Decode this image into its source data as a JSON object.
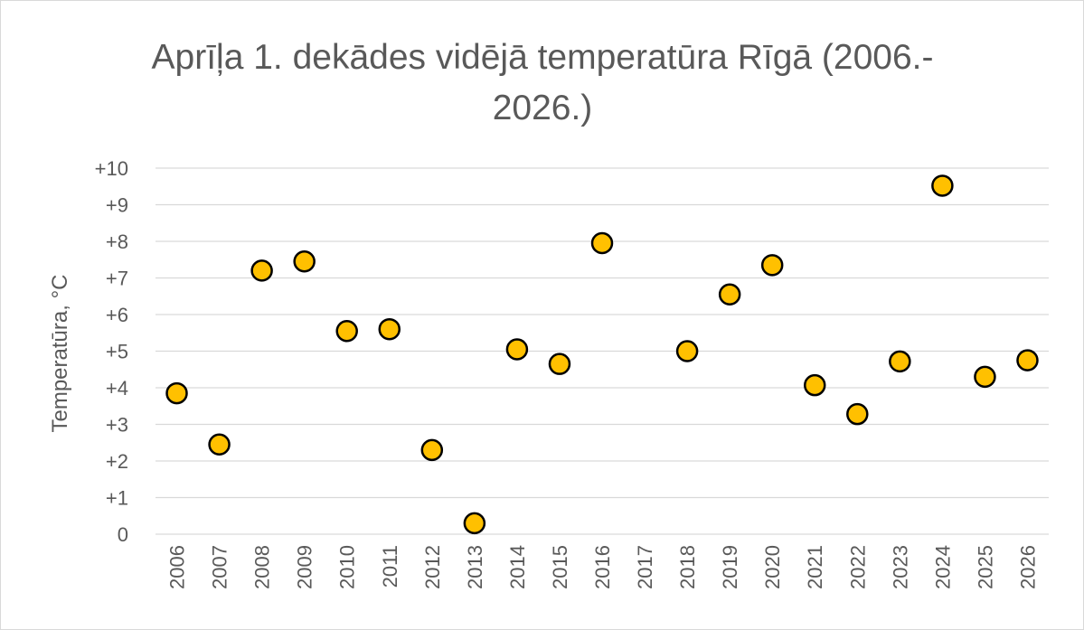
{
  "chart_data": {
    "type": "scatter",
    "title_lines": [
      "Aprīļa 1. dekādes vidējā temperatūra Rīgā (2006.-",
      "2026.)"
    ],
    "xlabel": "",
    "ylabel": "Temperatūra, °C",
    "ylim": [
      0,
      10
    ],
    "y_ticks": [
      0,
      1,
      2,
      3,
      4,
      5,
      6,
      7,
      8,
      9,
      10
    ],
    "y_tick_labels": [
      "0",
      "+1",
      "+2",
      "+3",
      "+4",
      "+5",
      "+6",
      "+7",
      "+8",
      "+9",
      "+10"
    ],
    "categories": [
      "2006",
      "2007",
      "2008",
      "2009",
      "2010",
      "2011",
      "2012",
      "2013",
      "2014",
      "2015",
      "2016",
      "2017",
      "2018",
      "2019",
      "2020",
      "2021",
      "2022",
      "2023",
      "2024",
      "2025",
      "2026"
    ],
    "values": [
      3.85,
      2.45,
      7.2,
      7.45,
      5.55,
      5.6,
      2.3,
      0.3,
      5.05,
      4.65,
      7.95,
      null,
      5.0,
      6.55,
      7.35,
      4.07,
      3.28,
      4.72,
      9.52,
      4.3,
      4.75
    ],
    "grid": true,
    "colors": {
      "marker_fill": "#ffc000",
      "marker_edge": "#000000",
      "grid": "#d9d9d9",
      "text": "#595959"
    }
  }
}
